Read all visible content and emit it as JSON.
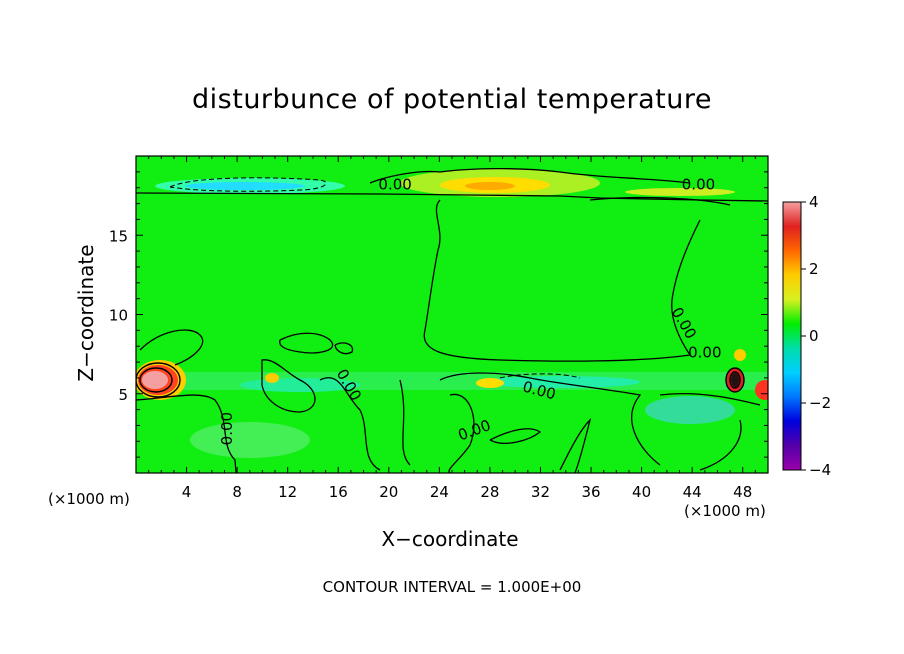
{
  "chart_data": {
    "type": "heatmap",
    "title": "disturbunce of potential temperature",
    "xlabel": "X−coordinate",
    "ylabel": "Z−coordinate",
    "x_unit": "(×1000 m)",
    "z_unit": "(×1000 m)",
    "xlim": [
      0,
      50
    ],
    "ylim": [
      0,
      20
    ],
    "x_ticks": [
      "4",
      "8",
      "12",
      "16",
      "20",
      "24",
      "28",
      "32",
      "36",
      "40",
      "44",
      "48"
    ],
    "x_tick_values": [
      4,
      8,
      12,
      16,
      20,
      24,
      28,
      32,
      36,
      40,
      44,
      48
    ],
    "y_ticks": [
      "5",
      "10",
      "15"
    ],
    "y_tick_values": [
      5,
      10,
      15
    ],
    "colorbar": {
      "range": [
        -4,
        4
      ],
      "tick_values": [
        4,
        2,
        0,
        -2,
        -4
      ],
      "tick_labels": [
        "4",
        "2",
        "0",
        "−2",
        "−4"
      ],
      "colors": [
        "#f4a0a0",
        "#e02020",
        "#ff6600",
        "#ffcc00",
        "#d8f020",
        "#00ee00",
        "#00ddaa",
        "#00cfff",
        "#0077ff",
        "#0000dd",
        "#5500aa",
        "#9900aa"
      ]
    },
    "contour_labels": [
      "0.00",
      "0.00",
      "0.00",
      "0.00",
      "0.00",
      "0.00",
      "0.00",
      "0.00",
      "0.00"
    ],
    "contour_interval_text": "CONTOUR INTERVAL = 1.000E+00",
    "grid": false
  }
}
